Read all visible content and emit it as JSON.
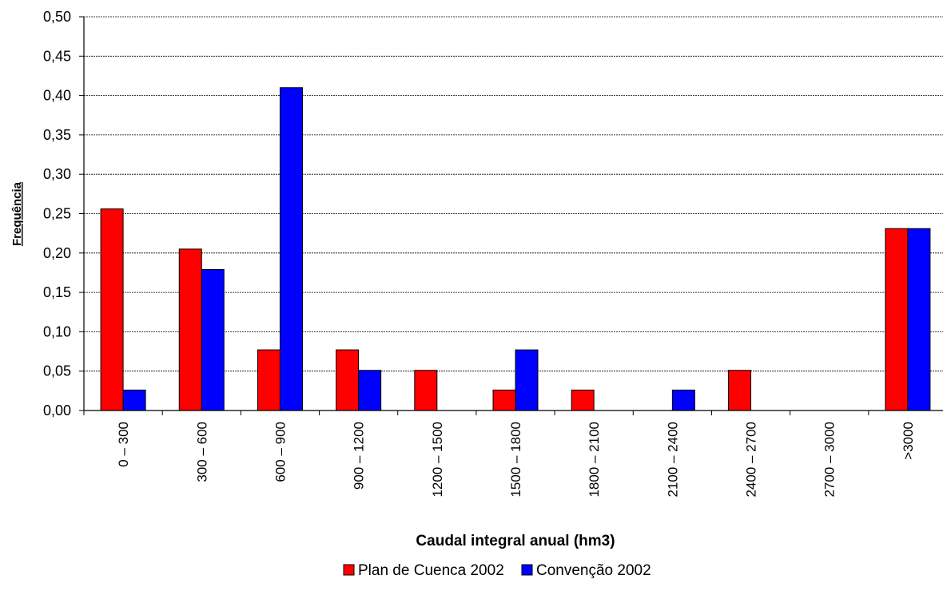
{
  "chart_data": {
    "type": "bar",
    "categories": [
      "0 – 300",
      "300 – 600",
      "600 – 900",
      "900 – 1200",
      "1200 – 1500",
      "1500 – 1800",
      "1800 – 2100",
      "2100 – 2400",
      "2400 – 2700",
      "2700 – 3000",
      ">3000"
    ],
    "series": [
      {
        "name": "Plan de Cuenca 2002",
        "color": "#ff0000",
        "values": [
          0.256,
          0.205,
          0.077,
          0.077,
          0.051,
          0.026,
          0.026,
          0.0,
          0.051,
          0.0,
          0.231
        ]
      },
      {
        "name": "Convenção 2002",
        "color": "#0000ff",
        "values": [
          0.026,
          0.179,
          0.41,
          0.051,
          0.0,
          0.077,
          0.0,
          0.026,
          0.0,
          0.0,
          0.231
        ]
      }
    ],
    "title": "",
    "xlabel": "Caudal integral anual (hm3)",
    "ylabel": "Frequência",
    "ylim": [
      0,
      0.5
    ],
    "yticks": [
      "0,00",
      "0,05",
      "0,10",
      "0,15",
      "0,20",
      "0,25",
      "0,30",
      "0,35",
      "0,40",
      "0,45",
      "0,50"
    ],
    "grid": true,
    "legend_position": "bottom"
  }
}
